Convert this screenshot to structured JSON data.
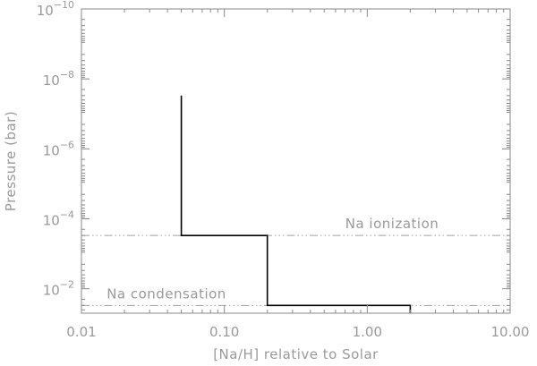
{
  "chart_data": {
    "type": "line",
    "title": "",
    "xlabel": "[Na/H] relative to Solar",
    "ylabel": "Pressure  (bar)",
    "xscale": "log",
    "yscale": "log",
    "yaxis_inverted": true,
    "xlim": [
      0.01,
      10.0
    ],
    "ylim": [
      0.05,
      1e-10
    ],
    "x_ticks": [
      0.01,
      0.1,
      1.0,
      10.0
    ],
    "x_tick_labels": [
      "0.01",
      "0.10",
      "1.00",
      "10.00"
    ],
    "y_ticks": [
      1e-10,
      1e-08,
      1e-06,
      0.0001,
      0.01
    ],
    "y_tick_labels": [
      {
        "base": "10",
        "exp": "−10"
      },
      {
        "base": "10",
        "exp": "−8"
      },
      {
        "base": "10",
        "exp": "−6"
      },
      {
        "base": "10",
        "exp": "−4"
      },
      {
        "base": "10",
        "exp": "−2"
      }
    ],
    "grid": false,
    "series": [
      {
        "x": [
          0.05,
          0.05,
          0.2,
          0.2,
          2.0,
          2.0
        ],
        "y": [
          3e-08,
          0.0003,
          0.0003,
          0.03,
          0.03,
          0.05
        ],
        "color": "#000000"
      }
    ],
    "reference_lines": [
      {
        "label": "Na ionization",
        "y": 0.0003,
        "color": "#a0a0a0"
      },
      {
        "label": "Na condensation",
        "y": 0.03,
        "color": "#a0a0a0"
      }
    ]
  }
}
